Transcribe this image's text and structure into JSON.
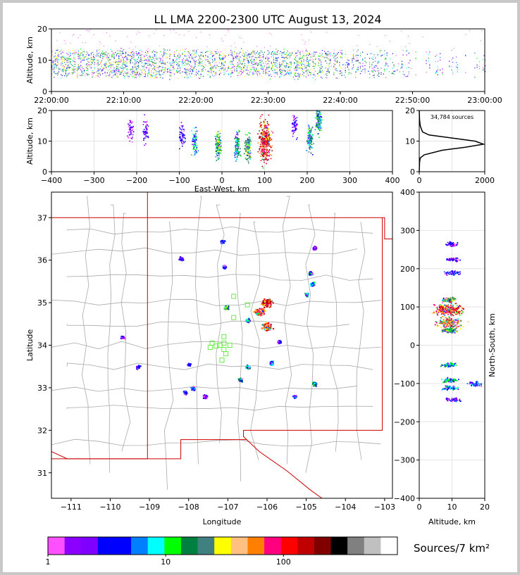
{
  "title": "LL LMA 2200-2300 UTC August 13, 2024",
  "colors": {
    "colorbar": [
      "#ff50ff",
      "#8c00ff",
      "#7f00ff",
      "#0000ff",
      "#0000ff",
      "#0080ff",
      "#00ffff",
      "#00ff00",
      "#008040",
      "#408080",
      "#ffff00",
      "#ffc080",
      "#ff8000",
      "#ff0080",
      "#ff0000",
      "#c00000",
      "#800000",
      "#000000",
      "#808080",
      "#c0c0c0",
      "#ffffff"
    ],
    "frame_border": "#c8c8c8",
    "state_lines": "#cc0000",
    "county_lines": "#aaaaaa",
    "station_markers": "#66ee44"
  },
  "chart_data": [
    {
      "id": "time-altitude",
      "type": "scatter",
      "xlabel": "",
      "ylabel": "Altitude, km",
      "xticks": [
        "22:00:00",
        "22:10:00",
        "22:20:00",
        "22:30:00",
        "22:40:00",
        "22:50:00",
        "23:00:00"
      ],
      "xlim": [
        0,
        60
      ],
      "ylim": [
        0,
        20
      ],
      "yticks": [
        0,
        10,
        20
      ],
      "source_band_km": [
        5,
        13
      ],
      "activity_profile": [
        {
          "minute": 0,
          "level": 0.9
        },
        {
          "minute": 5,
          "level": 0.85
        },
        {
          "minute": 10,
          "level": 0.95
        },
        {
          "minute": 15,
          "level": 0.9
        },
        {
          "minute": 20,
          "level": 0.75
        },
        {
          "minute": 25,
          "level": 0.85
        },
        {
          "minute": 30,
          "level": 0.8
        },
        {
          "minute": 35,
          "level": 0.9
        },
        {
          "minute": 40,
          "level": 0.6
        },
        {
          "minute": 45,
          "level": 0.5
        },
        {
          "minute": 50,
          "level": 0.35
        },
        {
          "minute": 55,
          "level": 0.3
        },
        {
          "minute": 60,
          "level": 0.25
        }
      ]
    },
    {
      "id": "east-west-altitude",
      "type": "heatmap",
      "xlabel": "East-West, km",
      "ylabel": "Altitude, km",
      "xlim": [
        -400,
        400
      ],
      "ylim": [
        0,
        20
      ],
      "xticks": [
        -400,
        -300,
        -200,
        -100,
        0,
        100,
        200,
        300,
        400
      ],
      "yticks": [
        0,
        10,
        20
      ],
      "cells": [
        {
          "x": -215,
          "y": 14,
          "density": 3
        },
        {
          "x": -180,
          "y": 13,
          "density": 3
        },
        {
          "x": -95,
          "y": 12,
          "density": 5
        },
        {
          "x": -65,
          "y": 10,
          "density": 15
        },
        {
          "x": -10,
          "y": 9,
          "density": 40
        },
        {
          "x": 35,
          "y": 8,
          "density": 30
        },
        {
          "x": 60,
          "y": 8,
          "density": 45
        },
        {
          "x": 100,
          "y": 10,
          "density": 300
        },
        {
          "x": 170,
          "y": 15,
          "density": 4
        },
        {
          "x": 205,
          "y": 11,
          "density": 30
        },
        {
          "x": 225,
          "y": 17,
          "density": 25
        }
      ]
    },
    {
      "id": "altitude-histogram",
      "type": "line",
      "annotation": "34,784 sources",
      "xlim": [
        0,
        2000
      ],
      "ylim": [
        0,
        20
      ],
      "xticks": [
        0,
        2000
      ],
      "yticks": [
        0,
        10,
        20
      ],
      "profile": [
        {
          "alt": 0,
          "count": 0
        },
        {
          "alt": 3,
          "count": 10
        },
        {
          "alt": 4.5,
          "count": 30
        },
        {
          "alt": 5.5,
          "count": 150
        },
        {
          "alt": 7,
          "count": 700
        },
        {
          "alt": 8,
          "count": 1400
        },
        {
          "alt": 9,
          "count": 1960
        },
        {
          "alt": 10,
          "count": 1700
        },
        {
          "alt": 11,
          "count": 1000
        },
        {
          "alt": 12,
          "count": 300
        },
        {
          "alt": 13,
          "count": 100
        },
        {
          "alt": 15,
          "count": 30
        },
        {
          "alt": 17,
          "count": 10
        },
        {
          "alt": 20,
          "count": 0
        }
      ]
    },
    {
      "id": "plan-view",
      "type": "heatmap",
      "xlabel": "Longitude",
      "ylabel": "Latitude",
      "xlim": [
        -111.5,
        -102.8
      ],
      "ylim": [
        30.4,
        37.6
      ],
      "xticks": [
        -111,
        -110,
        -109,
        -108,
        -107,
        -106,
        -105,
        -104,
        -103
      ],
      "yticks": [
        31,
        32,
        33,
        34,
        35,
        36,
        37
      ],
      "cells": [
        {
          "lon": -106.0,
          "lat": 35.0,
          "density": 300
        },
        {
          "lon": -106.2,
          "lat": 34.8,
          "density": 150
        },
        {
          "lon": -106.0,
          "lat": 34.45,
          "density": 200
        },
        {
          "lon": -106.5,
          "lat": 34.6,
          "density": 20
        },
        {
          "lon": -107.05,
          "lat": 34.9,
          "density": 40
        },
        {
          "lon": -107.15,
          "lat": 36.45,
          "density": 6
        },
        {
          "lon": -107.1,
          "lat": 35.85,
          "density": 8
        },
        {
          "lon": -108.2,
          "lat": 36.05,
          "density": 6
        },
        {
          "lon": -106.7,
          "lat": 33.2,
          "density": 30
        },
        {
          "lon": -106.5,
          "lat": 33.5,
          "density": 20
        },
        {
          "lon": -105.9,
          "lat": 33.6,
          "density": 10
        },
        {
          "lon": -104.8,
          "lat": 33.1,
          "density": 25
        },
        {
          "lon": -105.0,
          "lat": 35.2,
          "density": 20
        },
        {
          "lon": -104.9,
          "lat": 35.7,
          "density": 15
        },
        {
          "lon": -104.85,
          "lat": 35.45,
          "density": 20
        },
        {
          "lon": -105.3,
          "lat": 32.8,
          "density": 8
        },
        {
          "lon": -107.9,
          "lat": 33.0,
          "density": 10
        },
        {
          "lon": -108.1,
          "lat": 32.9,
          "density": 6
        },
        {
          "lon": -107.6,
          "lat": 32.8,
          "density": 4
        },
        {
          "lon": -109.3,
          "lat": 33.5,
          "density": 4
        },
        {
          "lon": -109.7,
          "lat": 34.2,
          "density": 3
        },
        {
          "lon": -108.0,
          "lat": 33.55,
          "density": 5
        },
        {
          "lon": -104.8,
          "lat": 36.3,
          "density": 3
        },
        {
          "lon": -105.7,
          "lat": 34.1,
          "density": 5
        }
      ],
      "stations": [
        {
          "lon": -106.85,
          "lat": 35.15
        },
        {
          "lon": -106.5,
          "lat": 34.95
        },
        {
          "lon": -106.85,
          "lat": 34.65
        },
        {
          "lon": -107.1,
          "lat": 34.2
        },
        {
          "lon": -107.1,
          "lat": 34.05
        },
        {
          "lon": -107.4,
          "lat": 34.05
        },
        {
          "lon": -107.45,
          "lat": 33.95
        },
        {
          "lon": -107.3,
          "lat": 33.98
        },
        {
          "lon": -107.2,
          "lat": 34.0
        },
        {
          "lon": -106.95,
          "lat": 34.0
        },
        {
          "lon": -107.1,
          "lat": 33.9
        },
        {
          "lon": -107.05,
          "lat": 33.8
        },
        {
          "lon": -107.15,
          "lat": 33.65
        }
      ]
    },
    {
      "id": "altitude-north-south",
      "type": "heatmap",
      "xlabel": "Altitude, km",
      "ylabel": "North-South, km",
      "xlim": [
        0,
        20
      ],
      "ylim": [
        -400,
        400
      ],
      "xticks": [
        0,
        10,
        20
      ],
      "yticks": [
        -400,
        -300,
        -200,
        -100,
        0,
        100,
        200,
        300,
        400
      ],
      "cells": [
        {
          "alt": 10,
          "ns": 265,
          "density": 4
        },
        {
          "alt": 10,
          "ns": 225,
          "density": 4
        },
        {
          "alt": 10,
          "ns": 190,
          "density": 6
        },
        {
          "alt": 9,
          "ns": 120,
          "density": 60
        },
        {
          "alt": 9,
          "ns": 95,
          "density": 250
        },
        {
          "alt": 9,
          "ns": 60,
          "density": 120
        },
        {
          "alt": 9,
          "ns": 40,
          "density": 40
        },
        {
          "alt": 9,
          "ns": -50,
          "density": 20
        },
        {
          "alt": 9,
          "ns": -90,
          "density": 25
        },
        {
          "alt": 9,
          "ns": -110,
          "density": 15
        },
        {
          "alt": 17,
          "ns": -100,
          "density": 10
        },
        {
          "alt": 10,
          "ns": -140,
          "density": 5
        }
      ]
    }
  ],
  "colorbar": {
    "label": "Sources/7 km²",
    "tick_labels": [
      "1",
      "10",
      "100"
    ],
    "scale": "log"
  }
}
